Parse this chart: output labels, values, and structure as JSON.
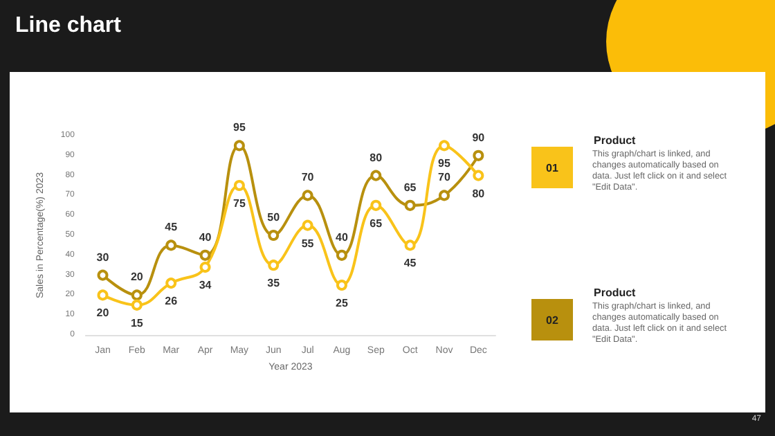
{
  "chart_data": [
    {
      "type": "line",
      "title": "Line chart",
      "xlabel": "Year 2023",
      "ylabel": "Sales in Percentage(%) 2023",
      "categories": [
        "Jan",
        "Feb",
        "Mar",
        "Apr",
        "May",
        "Jun",
        "Jul",
        "Aug",
        "Sep",
        "Oct",
        "Nov",
        "Dec"
      ],
      "series": [
        {
          "color": "#b8900e",
          "values": [
            30,
            20,
            45,
            40,
            95,
            50,
            70,
            40,
            80,
            65,
            70,
            90
          ]
        },
        {
          "color": "#f9c31a",
          "values": [
            20,
            15,
            26,
            34,
            75,
            35,
            55,
            25,
            65,
            45,
            95,
            80
          ]
        }
      ],
      "ylim": [
        0,
        100
      ],
      "yticks": [
        0,
        10,
        20,
        30,
        40,
        50,
        60,
        70,
        80,
        90,
        100
      ],
      "grid": false,
      "marker": "circle",
      "line_style": "solid",
      "data_labels": true,
      "annotations": [
        "47"
      ]
    },
    {
      "type": "other",
      "title": "Product",
      "annotations": [
        "01",
        "This graph/chart is linked, and changes automatically based on data. Just left click on it and select \"Edit Data\"."
      ]
    },
    {
      "type": "other",
      "title": "Product",
      "annotations": [
        "02",
        "This graph/chart is linked, and changes automatically based on data. Just left click on it and select \"Edit Data\"."
      ]
    }
  ]
}
